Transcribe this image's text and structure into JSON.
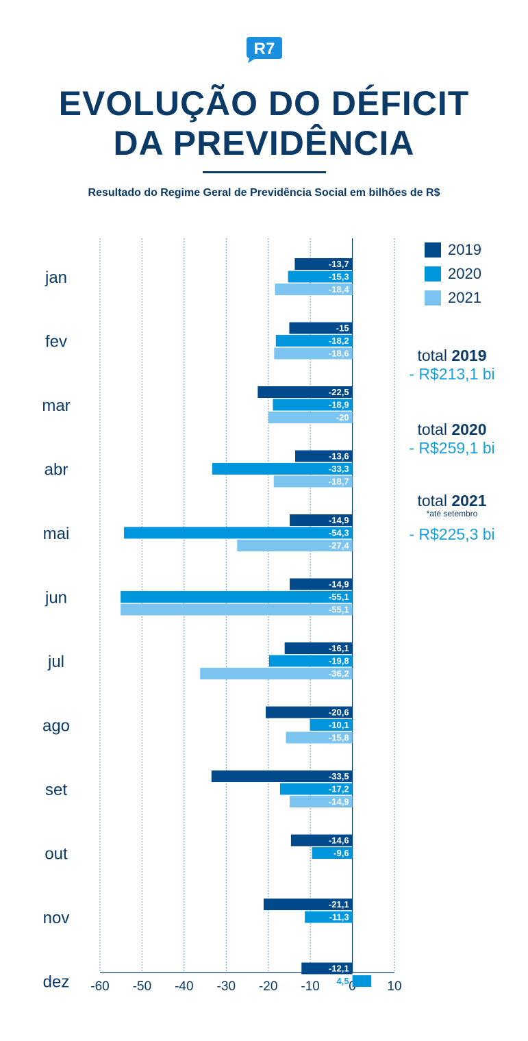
{
  "logo_text": "R7",
  "title_line1": "EVOLUÇÃO DO DÉFICIT",
  "title_line2": "DA PREVIDÊNCIA",
  "subtitle": "Resultado do Regime Geral de Previdência Social em bilhões de R$",
  "colors": {
    "primary": "#0b3a66",
    "2019": "#004a8c",
    "2020": "#0096de",
    "2021": "#7cc4f0",
    "accent": "#1aa0dc"
  },
  "legend": [
    "2019",
    "2020",
    "2021"
  ],
  "totals": [
    {
      "label": "total",
      "year": "2019",
      "value": "- R$213,1 bi",
      "note": ""
    },
    {
      "label": "total",
      "year": "2020",
      "value": "- R$259,1 bi",
      "note": ""
    },
    {
      "label": "total",
      "year": "2021",
      "value": "- R$225,3 bi",
      "note": "*até setembro"
    }
  ],
  "chart_data": {
    "type": "bar",
    "orientation": "horizontal",
    "categories": [
      "jan",
      "fev",
      "mar",
      "abr",
      "mai",
      "jun",
      "jul",
      "ago",
      "set",
      "out",
      "nov",
      "dez"
    ],
    "series": [
      {
        "name": "2019",
        "values": [
          -13.7,
          -15,
          -22.5,
          -13.6,
          -14.9,
          -14.9,
          -16.1,
          -20.6,
          -33.5,
          -14.6,
          -21.1,
          -12.1
        ],
        "labels": [
          "-13,7",
          "-15",
          "-22,5",
          "-13,6",
          "-14,9",
          "-14,9",
          "-16,1",
          "-20,6",
          "-33,5",
          "-14,6",
          "-21,1",
          "-12,1"
        ]
      },
      {
        "name": "2020",
        "values": [
          -15.3,
          -18.2,
          -18.9,
          -33.3,
          -54.3,
          -55.1,
          -19.8,
          -10.1,
          -17.2,
          -9.6,
          -11.3,
          4.5
        ],
        "labels": [
          "-15,3",
          "-18,2",
          "-18,9",
          "-33,3",
          "-54,3",
          "-55,1",
          "-19,8",
          "-10,1",
          "-17,2",
          "-9,6",
          "-11,3",
          "4,5"
        ]
      },
      {
        "name": "2021",
        "values": [
          -18.4,
          -18.6,
          -20,
          -18.7,
          -27.4,
          -55.1,
          -36.2,
          -15.8,
          -14.9,
          null,
          null,
          null
        ],
        "labels": [
          "-18,4",
          "-18,6",
          "-20",
          "-18,7",
          "-27,4",
          "-55,1",
          "-36,2",
          "-15,8",
          "-14,9",
          null,
          null,
          null
        ]
      }
    ],
    "xlim": [
      -60,
      10
    ],
    "xticks": [
      -60,
      -50,
      -40,
      -30,
      -20,
      -10,
      0,
      10
    ],
    "xtick_labels": [
      "-60",
      "-50",
      "-40",
      "-30",
      "-20",
      "-10",
      "0",
      "10"
    ],
    "grid": true,
    "legend_position": "top-right"
  }
}
